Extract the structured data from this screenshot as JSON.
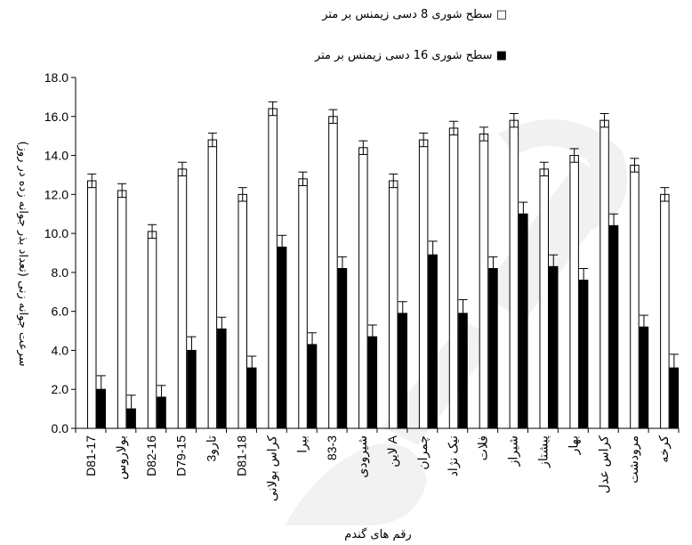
{
  "chart_data": {
    "type": "bar",
    "title": "",
    "xlabel": "رقم های گندم",
    "ylabel": "سرعت جوانه زنی (تعداد بذر جوانه زده در روز)",
    "ylim": [
      0,
      18
    ],
    "yticks": [
      "0.0",
      "2.0",
      "4.0",
      "6.0",
      "8.0",
      "10.0",
      "12.0",
      "14.0",
      "16.0",
      "18.0"
    ],
    "grid": false,
    "legend_position": "top",
    "categories": [
      "D81-17",
      "بولاروس",
      "D82-16",
      "D79-15",
      "تارو3",
      "D81-18",
      "کراس بولانی",
      "بیرا",
      "83-3",
      "شیرودی",
      "لاین A",
      "چمران",
      "نیک نژاد",
      "فلات",
      "شیراز",
      "پیشتاز",
      "بهار",
      "کراس عدل",
      "مرودشت",
      "کرخه"
    ],
    "series": [
      {
        "name": "سطح شوری 8 دسی زیمنس بر متر □",
        "fill": "#ffffff",
        "values": [
          12.7,
          12.2,
          10.1,
          13.3,
          14.8,
          12.0,
          16.4,
          12.8,
          16.0,
          14.4,
          12.7,
          14.8,
          15.4,
          15.1,
          15.8,
          13.3,
          14.0,
          15.8,
          13.5,
          12.0
        ],
        "errors": [
          0.35,
          0.35,
          0.35,
          0.35,
          0.35,
          0.35,
          0.35,
          0.35,
          0.35,
          0.35,
          0.35,
          0.35,
          0.35,
          0.35,
          0.35,
          0.35,
          0.35,
          0.35,
          0.35,
          0.35
        ]
      },
      {
        "name": "سطح شوری 16 دسی زیمنس بر متر ■",
        "fill": "#000000",
        "values": [
          2.0,
          1.0,
          1.6,
          4.0,
          5.1,
          3.1,
          9.3,
          4.3,
          8.2,
          4.7,
          5.9,
          8.9,
          5.9,
          8.2,
          11.0,
          8.3,
          7.6,
          10.4,
          5.2,
          3.1
        ],
        "errors": [
          0.7,
          0.7,
          0.6,
          0.7,
          0.6,
          0.6,
          0.6,
          0.6,
          0.6,
          0.6,
          0.6,
          0.7,
          0.7,
          0.6,
          0.6,
          0.6,
          0.6,
          0.6,
          0.6,
          0.7
        ]
      }
    ]
  }
}
